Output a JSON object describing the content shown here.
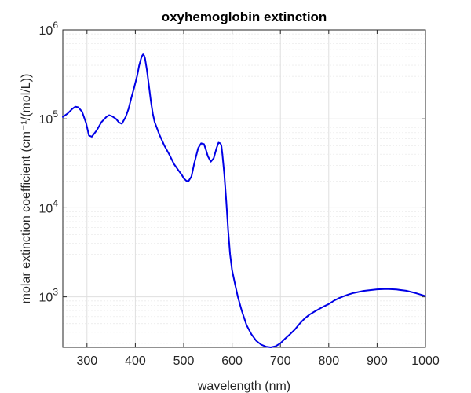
{
  "chart_data": {
    "type": "line",
    "title": "oxyhemoglobin extinction",
    "xlabel": "wavelength (nm)",
    "ylabel": "molar extinction coefficient (cm⁻¹/(mol/L))",
    "xlim": [
      250,
      1000
    ],
    "ylim": [
      270,
      1000000
    ],
    "yscale": "log",
    "grid": true,
    "x_ticks": [
      300,
      400,
      500,
      600,
      700,
      800,
      900,
      1000
    ],
    "y_ticks": [
      {
        "value": 1000,
        "base": "10",
        "exp": "3"
      },
      {
        "value": 10000,
        "base": "10",
        "exp": "4"
      },
      {
        "value": 100000,
        "base": "10",
        "exp": "5"
      },
      {
        "value": 1000000,
        "base": "10",
        "exp": "6"
      }
    ],
    "line_color": "#0000e6",
    "series": [
      {
        "x": [
          250,
          260,
          270,
          276,
          282,
          290,
          298,
          304,
          310,
          320,
          330,
          340,
          346,
          352,
          360,
          366,
          372,
          380,
          386,
          392,
          398,
          404,
          408,
          412,
          414,
          416,
          418,
          420,
          424,
          428,
          432,
          436,
          440,
          450,
          460,
          470,
          480,
          490,
          496,
          500,
          506,
          510,
          516,
          522,
          530,
          536,
          542,
          546,
          550,
          556,
          562,
          568,
          572,
          576,
          578,
          580,
          584,
          588,
          592,
          596,
          600,
          606,
          612,
          620,
          630,
          640,
          650,
          660,
          670,
          680,
          690,
          700,
          710,
          720,
          730,
          740,
          750,
          760,
          770,
          780,
          790,
          800,
          810,
          820,
          830,
          840,
          850,
          860,
          870,
          880,
          900,
          920,
          940,
          960,
          980,
          1000
        ],
        "y": [
          105000,
          115000,
          130000,
          137000,
          135000,
          120000,
          90000,
          65000,
          63000,
          74000,
          92000,
          105000,
          110000,
          107000,
          100000,
          91000,
          88000,
          105000,
          130000,
          175000,
          230000,
          310000,
          400000,
          480000,
          510000,
          530000,
          515000,
          480000,
          350000,
          240000,
          160000,
          115000,
          92000,
          66000,
          50000,
          40000,
          31000,
          26000,
          23500,
          21500,
          20000,
          20000,
          22500,
          32000,
          47000,
          53000,
          52000,
          45000,
          38000,
          33000,
          36000,
          47000,
          54000,
          53000,
          50000,
          40000,
          24000,
          12000,
          5500,
          3000,
          2000,
          1400,
          1000,
          700,
          480,
          380,
          320,
          290,
          275,
          270,
          278,
          300,
          340,
          380,
          430,
          500,
          570,
          630,
          680,
          730,
          780,
          830,
          900,
          960,
          1010,
          1060,
          1100,
          1130,
          1160,
          1180,
          1215,
          1225,
          1210,
          1170,
          1100,
          1020
        ]
      }
    ]
  }
}
